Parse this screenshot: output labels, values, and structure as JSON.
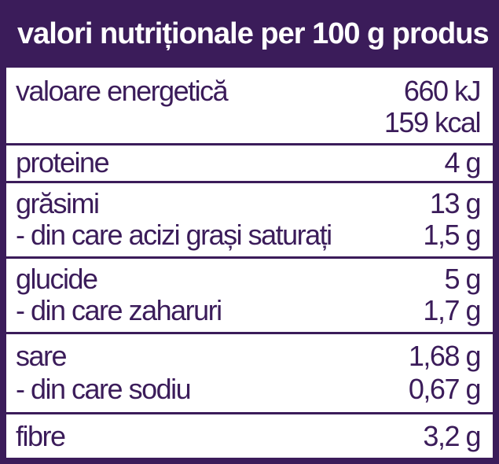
{
  "header": {
    "title": "valori nutriționale per 100 g produs"
  },
  "rows": {
    "energy": {
      "label": "valoare energetică",
      "kj": "660 kJ",
      "kcal": "159 kcal"
    },
    "protein": {
      "label": "proteine",
      "value": "4 g"
    },
    "fat": {
      "label": "grăsimi",
      "value": "13 g"
    },
    "saturated": {
      "label": "- din care acizi grași saturați",
      "value": "1,5 g"
    },
    "carbs": {
      "label": "glucide",
      "value": "5 g"
    },
    "sugars": {
      "label": "- din care zaharuri",
      "value": "1,7 g"
    },
    "salt": {
      "label": "sare",
      "value": "1,68 g"
    },
    "sodium": {
      "label": "- din care sodiu",
      "value": "0,67 g"
    },
    "fibre": {
      "label": "fibre",
      "value": "3,2 g"
    }
  },
  "colors": {
    "accent": "#3b1c5a",
    "background": "#ffffff"
  }
}
